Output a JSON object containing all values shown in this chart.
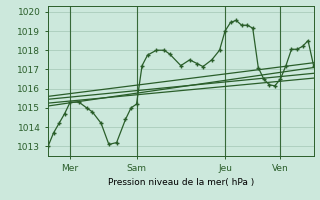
{
  "xlabel": "Pression niveau de la mer( hPa )",
  "bg_color": "#cce8dc",
  "grid_color": "#aaccbb",
  "line_color": "#2a5e2a",
  "ylim": [
    1012.5,
    1020.3
  ],
  "xlim": [
    0,
    24
  ],
  "xticks": [
    2,
    8,
    16,
    21
  ],
  "xticklabels": [
    "Mer",
    "Sam",
    "Jeu",
    "Ven"
  ],
  "vlines": [
    2,
    8,
    16,
    21
  ],
  "noisy_x": [
    0,
    0.5,
    1.0,
    1.5,
    2.0,
    2.8,
    3.5,
    4.0,
    4.8,
    5.5,
    6.2,
    7.0,
    7.5,
    8.0,
    8.5,
    9.0,
    9.8,
    10.5,
    11.0,
    12.0,
    12.8,
    13.5,
    14.0,
    14.8,
    15.5,
    16.0,
    16.5,
    17.0,
    17.5,
    18.0,
    18.5,
    19.0,
    19.5,
    20.0,
    20.5,
    21.0,
    21.5,
    22.0,
    22.5,
    23.0,
    23.5,
    24.0
  ],
  "noisy_y": [
    1013.0,
    1013.7,
    1014.2,
    1014.7,
    1015.3,
    1015.3,
    1015.0,
    1014.8,
    1014.2,
    1013.1,
    1013.2,
    1014.4,
    1015.0,
    1015.2,
    1017.2,
    1017.75,
    1018.0,
    1018.0,
    1017.8,
    1017.2,
    1017.5,
    1017.3,
    1017.15,
    1017.5,
    1018.0,
    1019.0,
    1019.45,
    1019.55,
    1019.3,
    1019.3,
    1019.15,
    1017.1,
    1016.5,
    1016.2,
    1016.15,
    1016.5,
    1017.2,
    1018.05,
    1018.05,
    1018.2,
    1018.5,
    1017.2
  ],
  "trend1_x": [
    0,
    24
  ],
  "trend1_y": [
    1015.25,
    1016.55
  ],
  "trend2_x": [
    0,
    24
  ],
  "trend2_y": [
    1015.45,
    1016.8
  ],
  "trend3_x": [
    0,
    24
  ],
  "trend3_y": [
    1015.1,
    1017.1
  ],
  "trend4_x": [
    0,
    24
  ],
  "trend4_y": [
    1015.6,
    1017.35
  ],
  "yticks": [
    1013,
    1014,
    1015,
    1016,
    1017,
    1018,
    1019,
    1020
  ]
}
